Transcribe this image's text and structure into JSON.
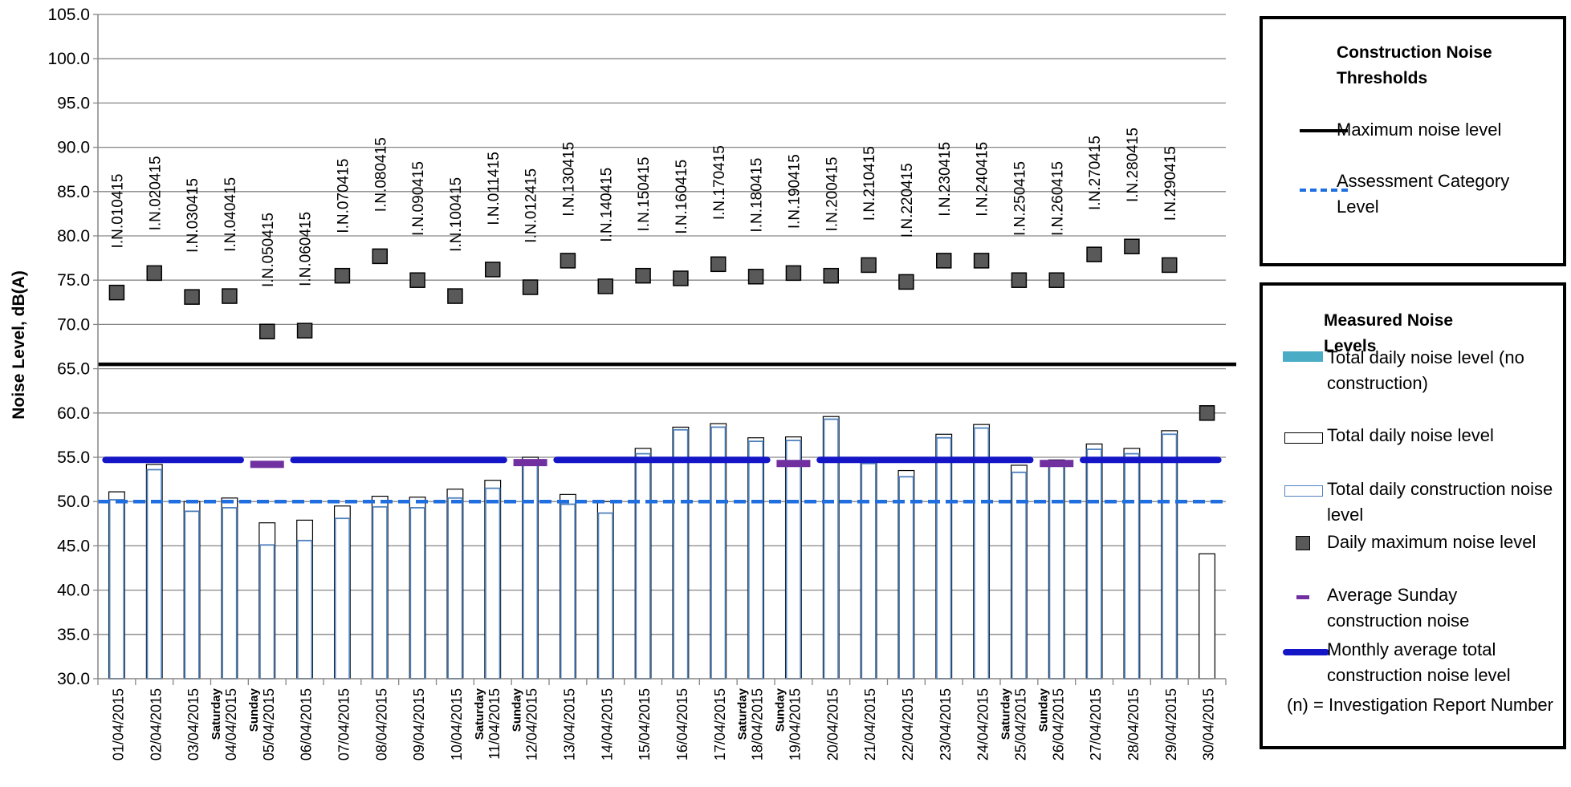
{
  "chart_data": {
    "type": "bar",
    "ylabel": "Noise Level, dB(A)",
    "ylim": [
      30,
      105
    ],
    "ytick_step": 5,
    "grid": true,
    "categories": [
      "01/04/2015",
      "02/04/2015",
      "03/04/2015",
      "04/04/2015",
      "05/04/2015",
      "06/04/2015",
      "07/04/2015",
      "08/04/2015",
      "09/04/2015",
      "10/04/2015",
      "11/04/2015",
      "12/04/2015",
      "13/04/2015",
      "14/04/2015",
      "15/04/2015",
      "16/04/2015",
      "17/04/2015",
      "18/04/2015",
      "19/04/2015",
      "20/04/2015",
      "21/04/2015",
      "22/04/2015",
      "23/04/2015",
      "24/04/2015",
      "25/04/2015",
      "26/04/2015",
      "27/04/2015",
      "28/04/2015",
      "29/04/2015",
      "30/04/2015"
    ],
    "day_labels": [
      "",
      "",
      "",
      "Saturday",
      "Sunday",
      "",
      "",
      "",
      "",
      "",
      "Saturday",
      "Sunday",
      "",
      "",
      "",
      "",
      "",
      "Saturday",
      "Sunday",
      "",
      "",
      "",
      "",
      "",
      "Saturday",
      "Sunday",
      "",
      "",
      "",
      ""
    ],
    "thresholds": {
      "maximum_noise_level": 65.5,
      "assessment_category_level": 50
    },
    "series": [
      {
        "name": "Total daily noise level",
        "values": [
          51.1,
          54.2,
          50.0,
          50.4,
          47.6,
          47.9,
          49.5,
          50.6,
          50.5,
          51.4,
          52.4,
          55.0,
          50.8,
          50.0,
          56.0,
          58.4,
          58.8,
          57.2,
          57.3,
          59.6,
          54.7,
          53.5,
          57.6,
          58.7,
          54.1,
          54.7,
          56.5,
          56.0,
          58.0,
          44.1
        ]
      },
      {
        "name": "Total daily construction noise level",
        "values": [
          50.2,
          53.6,
          48.9,
          49.3,
          45.1,
          45.6,
          48.1,
          49.4,
          49.3,
          50.4,
          51.5,
          54.6,
          49.7,
          48.7,
          55.4,
          58.1,
          58.4,
          56.8,
          56.9,
          59.3,
          54.3,
          52.8,
          57.2,
          58.3,
          53.3,
          54.1,
          55.9,
          55.4,
          57.6,
          null
        ]
      },
      {
        "name": "Daily maximum noise level",
        "values": [
          73.6,
          75.8,
          73.1,
          73.2,
          69.2,
          69.3,
          75.5,
          77.7,
          75.0,
          73.2,
          76.2,
          74.2,
          77.2,
          74.3,
          75.5,
          75.2,
          76.8,
          75.4,
          75.8,
          75.5,
          76.7,
          74.8,
          77.2,
          77.2,
          75.0,
          75.0,
          77.9,
          78.8,
          76.7,
          60.0
        ]
      }
    ],
    "sunday_averages": [
      {
        "start": 4,
        "end": 4,
        "value": 54.2
      },
      {
        "start": 11,
        "end": 11,
        "value": 54.4
      },
      {
        "start": 18,
        "end": 18,
        "value": 54.3
      },
      {
        "start": 25,
        "end": 25,
        "value": 54.3
      }
    ],
    "monthly_averages": [
      {
        "start": 0,
        "end": 3,
        "value": 54.7
      },
      {
        "start": 5,
        "end": 10,
        "value": 54.7
      },
      {
        "start": 12,
        "end": 17,
        "value": 54.7
      },
      {
        "start": 19,
        "end": 24,
        "value": 54.7
      },
      {
        "start": 26,
        "end": 29,
        "value": 54.7
      }
    ],
    "annotations": [
      {
        "index": 0,
        "text": "I.N.010415",
        "y": 78.6
      },
      {
        "index": 1,
        "text": "I.N.020415",
        "y": 80.6
      },
      {
        "index": 2,
        "text": "I.N.030415",
        "y": 78.1
      },
      {
        "index": 3,
        "text": "I.N.040415",
        "y": 78.2
      },
      {
        "index": 4,
        "text": "I.N.050415",
        "y": 74.2
      },
      {
        "index": 5,
        "text": "I.N.060415",
        "y": 74.3
      },
      {
        "index": 6,
        "text": "I.N.070415",
        "y": 80.3
      },
      {
        "index": 7,
        "text": "I.N.080415",
        "y": 82.7
      },
      {
        "index": 8,
        "text": "I.N.090415",
        "y": 80.0
      },
      {
        "index": 9,
        "text": "I.N.100415",
        "y": 78.2
      },
      {
        "index": 10,
        "text": "I.N.011415",
        "y": 81.2
      },
      {
        "index": 11,
        "text": "I.N.012415",
        "y": 79.2
      },
      {
        "index": 12,
        "text": "I.N.130415",
        "y": 82.2
      },
      {
        "index": 13,
        "text": "I.N.140415",
        "y": 79.3
      },
      {
        "index": 14,
        "text": "I.N.150415",
        "y": 80.5
      },
      {
        "index": 15,
        "text": "I.N.160415",
        "y": 80.2
      },
      {
        "index": 16,
        "text": "I.N.170415",
        "y": 81.8
      },
      {
        "index": 17,
        "text": "I.N.180415",
        "y": 80.4
      },
      {
        "index": 18,
        "text": "I.N.190415",
        "y": 80.8
      },
      {
        "index": 19,
        "text": "I.N.200415",
        "y": 80.5
      },
      {
        "index": 20,
        "text": "I.N.210415",
        "y": 81.7
      },
      {
        "index": 21,
        "text": "I.N.220415",
        "y": 79.8
      },
      {
        "index": 22,
        "text": "I.N.230415",
        "y": 82.2
      },
      {
        "index": 23,
        "text": "I.N.240415",
        "y": 82.2
      },
      {
        "index": 24,
        "text": "I.N.250415",
        "y": 80.0
      },
      {
        "index": 25,
        "text": "I.N.260415",
        "y": 80.0
      },
      {
        "index": 26,
        "text": "I.N.270415",
        "y": 82.9
      },
      {
        "index": 27,
        "text": "I.N.280415",
        "y": 83.8
      },
      {
        "index": 28,
        "text": "I.N.290415",
        "y": 81.7
      }
    ],
    "colors": {
      "max_threshold": "#000000",
      "assessment_level": "#1f6fe0",
      "construction_bar_border": "#4f81bd",
      "no_construction_fill": "#4bacc6",
      "daily_max_fill": "#595959",
      "sunday_average": "#7030a0",
      "monthly_average": "#1515c8",
      "grid": "#868686"
    }
  },
  "legend": {
    "thresholds": {
      "title": "Construction Noise Thresholds",
      "items": [
        "Maximum noise level",
        "Assessment Category Level"
      ]
    },
    "measured": {
      "title": "Measured Noise Levels",
      "items": [
        "Total daily noise level (no construction)",
        "Total daily noise level",
        "Total daily construction noise level",
        "Daily maximum noise level",
        "Average Sunday construction noise",
        "Monthly average total construction noise level",
        "(n) = Investigation Report Number"
      ]
    }
  }
}
